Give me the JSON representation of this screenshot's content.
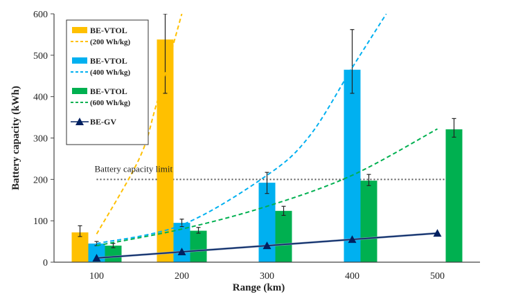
{
  "chart_data": {
    "type": "bar",
    "xlabel": "Range (km)",
    "ylabel": "Battery capacity (kWh)",
    "categories": [
      "100",
      "200",
      "300",
      "400",
      "500"
    ],
    "x_values": [
      100,
      200,
      300,
      400,
      500
    ],
    "ylim": [
      0,
      600
    ],
    "yticks": [
      0,
      100,
      200,
      300,
      400,
      500,
      600
    ],
    "grid": false,
    "legend_position": "top-left",
    "series": [
      {
        "name": "BE-VTOL",
        "name_sub": "(200 Wh/kg)",
        "color": "#FFC000",
        "values": [
          72,
          538,
          null,
          null,
          null
        ],
        "error": [
          [
            62,
            88
          ],
          [
            408,
            600
          ],
          null,
          null,
          null
        ],
        "trend": [
          [
            100,
            68
          ],
          [
            150,
            250
          ],
          [
            170,
            380
          ],
          [
            200,
            600
          ]
        ]
      },
      {
        "name": "BE-VTOL",
        "name_sub": "(400 Wh/kg)",
        "color": "#00B0F0",
        "values": [
          45,
          95,
          192,
          465,
          null
        ],
        "error": [
          [
            40,
            50
          ],
          [
            86,
            104
          ],
          [
            166,
            217
          ],
          [
            408,
            562
          ],
          null
        ],
        "trend": [
          [
            100,
            45
          ],
          [
            200,
            90
          ],
          [
            300,
            210
          ],
          [
            350,
            305
          ],
          [
            400,
            470
          ],
          [
            440,
            600
          ]
        ]
      },
      {
        "name": "BE-VTOL",
        "name_sub": "(600 Wh/kg)",
        "color": "#00B050",
        "values": [
          40,
          76,
          124,
          197,
          321
        ],
        "error": [
          [
            35,
            45
          ],
          [
            70,
            84
          ],
          [
            113,
            135
          ],
          [
            185,
            212
          ],
          [
            302,
            347
          ]
        ],
        "trend": [
          [
            100,
            40
          ],
          [
            200,
            80
          ],
          [
            300,
            135
          ],
          [
            400,
            210
          ],
          [
            500,
            322
          ]
        ]
      },
      {
        "name": "BE-GV",
        "color": "#002060",
        "values": [
          10,
          25,
          40,
          55,
          70
        ]
      }
    ],
    "reference_line": {
      "label": "Battery capacity limit",
      "value": 200,
      "color": "#555555"
    }
  }
}
